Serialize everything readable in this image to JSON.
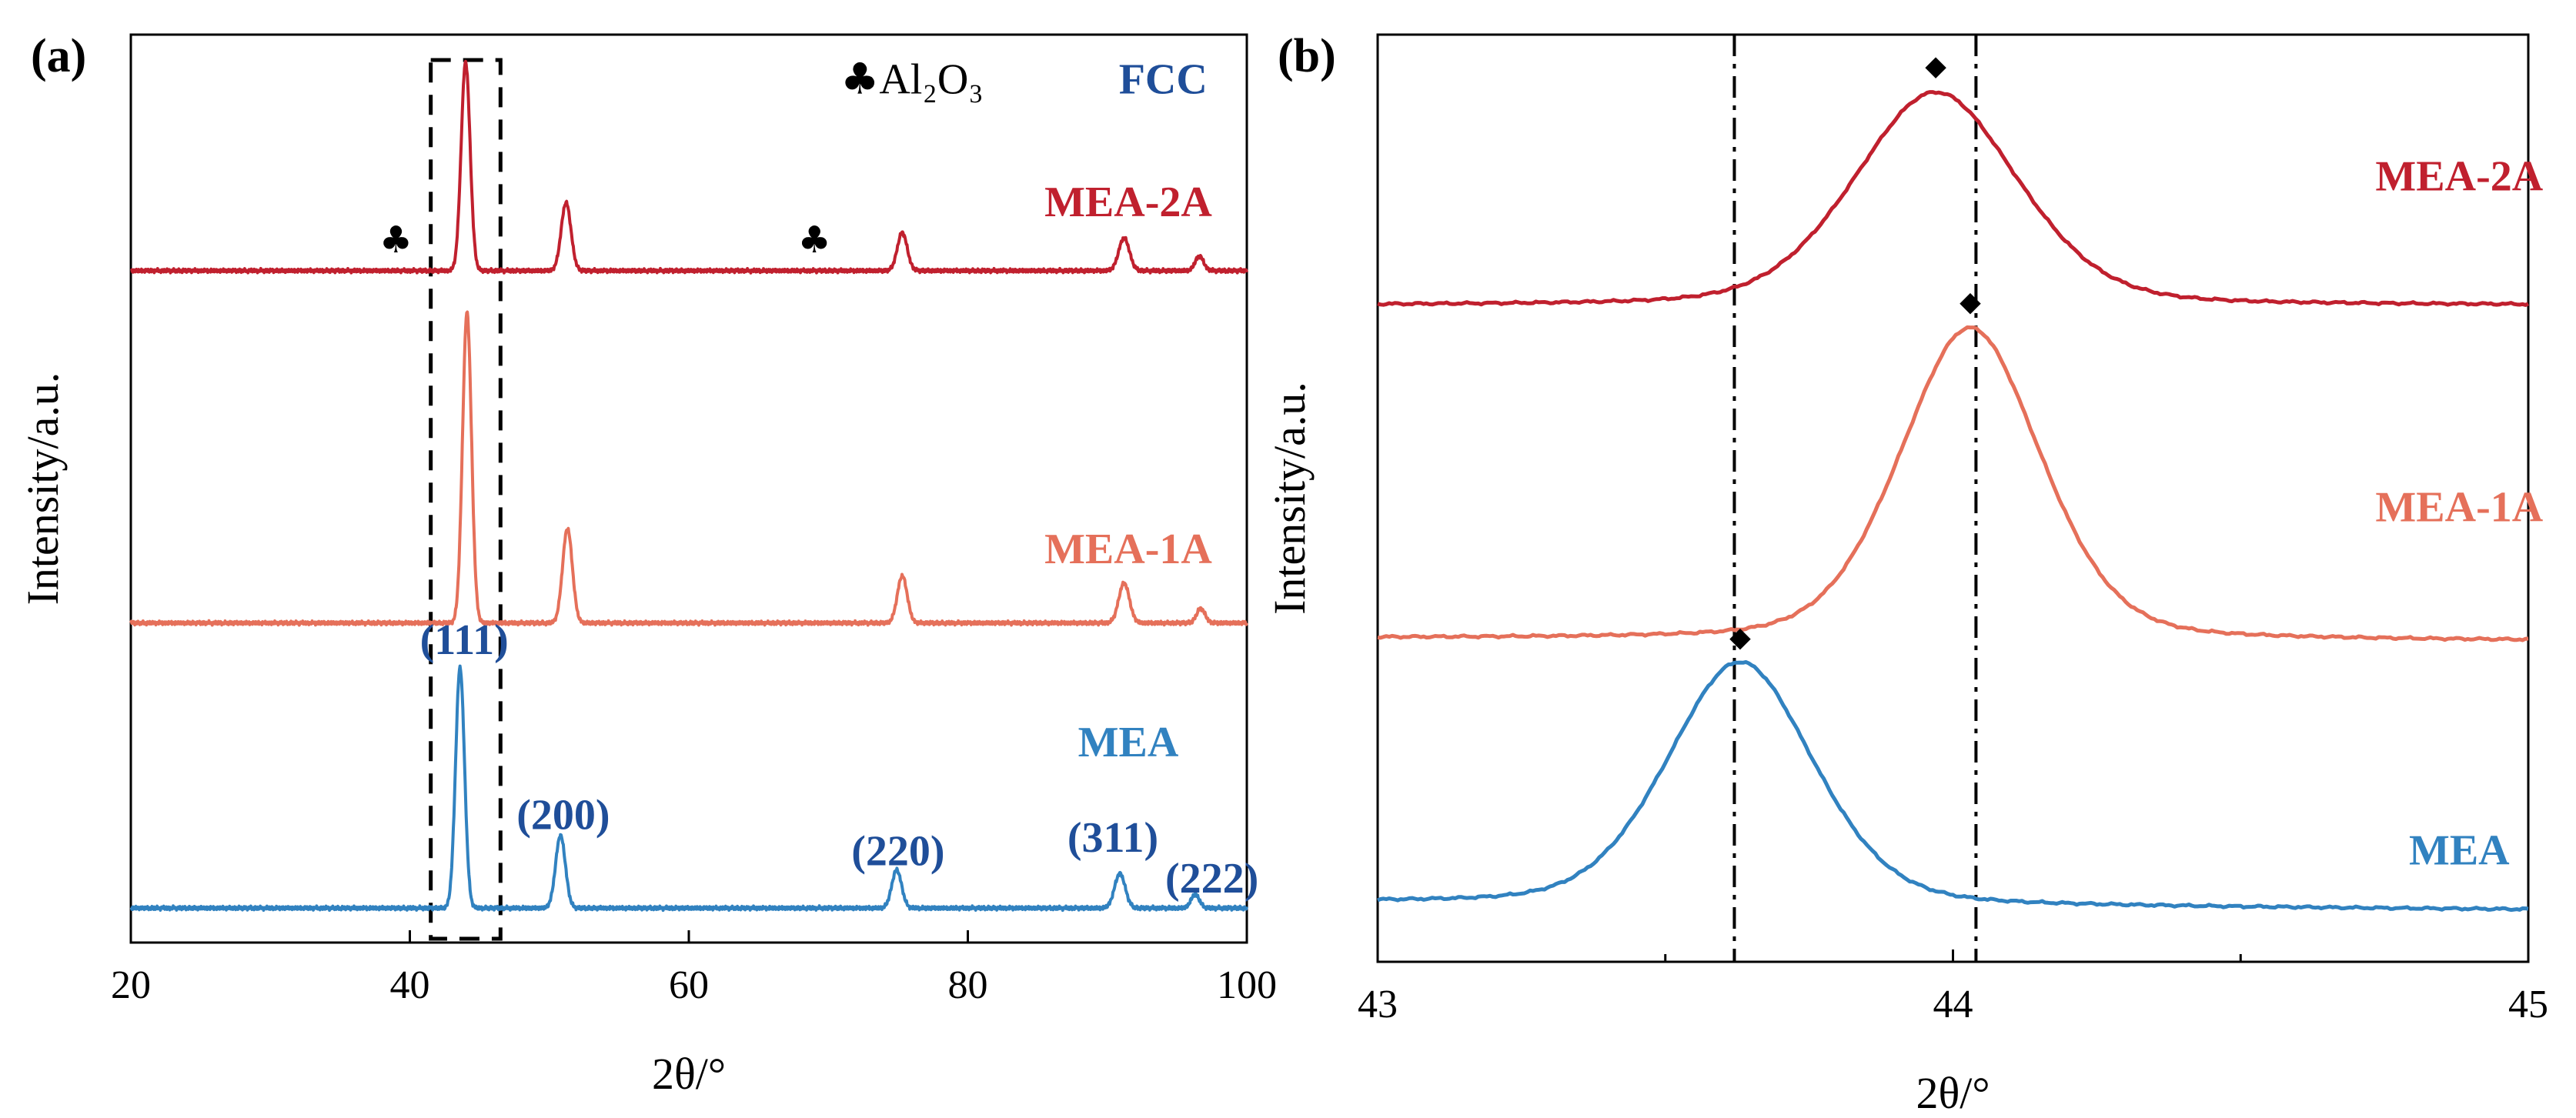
{
  "chart_data": [
    {
      "type": "line",
      "panel_label": "(a)",
      "xlabel": "2θ/°",
      "ylabel": "Intensity/a.u.",
      "xlim": [
        20,
        100
      ],
      "xticks": [
        20,
        40,
        60,
        80,
        100
      ],
      "xtick_labels": [
        "20",
        "40",
        "60",
        "80",
        "100"
      ],
      "y_units": "normalized stacked intensity (0 bottom, 1 top)",
      "ylim": [
        0,
        1
      ],
      "highlight_box_x_range": [
        41.5,
        46.5
      ],
      "legend": {
        "phase_labels": [
          {
            "symbol": "♣",
            "formula": "Al₂O₃",
            "color": "#000000"
          },
          {
            "text": "FCC",
            "color": "#1f4e99"
          }
        ]
      },
      "series": [
        {
          "name": "MEA-2A",
          "color": "#c0202e",
          "baseline": 0.74,
          "peaks": [
            {
              "x": 44.0,
              "height": 0.23,
              "width": 0.32
            },
            {
              "x": 51.2,
              "height": 0.075,
              "width": 0.35
            },
            {
              "x": 75.3,
              "height": 0.042,
              "width": 0.35
            },
            {
              "x": 91.2,
              "height": 0.036,
              "width": 0.38
            },
            {
              "x": 96.6,
              "height": 0.016,
              "width": 0.3
            }
          ]
        },
        {
          "name": "MEA-1A",
          "color": "#e5705a",
          "baseline": 0.352,
          "peaks": [
            {
              "x": 44.1,
              "height": 0.342,
              "width": 0.32
            },
            {
              "x": 51.3,
              "height": 0.104,
              "width": 0.35
            },
            {
              "x": 75.3,
              "height": 0.052,
              "width": 0.35
            },
            {
              "x": 91.2,
              "height": 0.044,
              "width": 0.38
            },
            {
              "x": 96.7,
              "height": 0.016,
              "width": 0.3
            }
          ]
        },
        {
          "name": "MEA",
          "color": "#3182c0",
          "baseline": 0.038,
          "peaks": [
            {
              "x": 43.6,
              "height": 0.265,
              "width": 0.32
            },
            {
              "x": 50.8,
              "height": 0.08,
              "width": 0.35
            },
            {
              "x": 74.9,
              "height": 0.042,
              "width": 0.35
            },
            {
              "x": 90.9,
              "height": 0.038,
              "width": 0.38
            },
            {
              "x": 96.3,
              "height": 0.015,
              "width": 0.3
            }
          ]
        }
      ],
      "series_labels": [
        {
          "text": "MEA-2A",
          "color": "#c0202e",
          "x": 91.5,
          "y": 0.8
        },
        {
          "text": "MEA-1A",
          "color": "#e5705a",
          "x": 91.5,
          "y": 0.418
        },
        {
          "text": "MEA",
          "color": "#3182c0",
          "x": 91.5,
          "y": 0.205
        }
      ],
      "alumina_markers": [
        {
          "symbol": "♣",
          "x": 39.0,
          "y": 0.76
        },
        {
          "symbol": "♣",
          "x": 69.0,
          "y": 0.76
        }
      ],
      "peak_labels": [
        {
          "text": "(111)",
          "color": "#1f4e99",
          "x": 43.9,
          "y": 0.318
        },
        {
          "text": "(200)",
          "color": "#1f4e99",
          "x": 51.0,
          "y": 0.125
        },
        {
          "text": "(220)",
          "color": "#1f4e99",
          "x": 75.0,
          "y": 0.085
        },
        {
          "text": "(311)",
          "color": "#1f4e99",
          "x": 90.4,
          "y": 0.1
        },
        {
          "text": "(222)",
          "color": "#1f4e99",
          "x": 97.5,
          "y": 0.055
        }
      ]
    },
    {
      "type": "line",
      "panel_label": "(b)",
      "xlabel": "2θ/°",
      "ylabel": "Intensity/a.u.",
      "xlim": [
        43,
        45
      ],
      "xticks": [
        43,
        44,
        45
      ],
      "xtick_labels": [
        "43",
        "44",
        "45"
      ],
      "minor_xticks": [
        43.5,
        44.5
      ],
      "y_units": "normalized stacked intensity (0 bottom, 1 top)",
      "ylim": [
        0,
        1
      ],
      "reference_lines_x": [
        43.62,
        44.04
      ],
      "peak_marker_symbol": "◆",
      "series": [
        {
          "name": "MEA-2A",
          "color": "#c0202e",
          "peak_x": 43.97,
          "peak_y": 0.938,
          "width": 0.145,
          "start_y": 0.708,
          "end_y": 0.708
        },
        {
          "name": "MEA-1A",
          "color": "#e5705a",
          "peak_x": 44.03,
          "peak_y": 0.684,
          "width": 0.125,
          "start_y": 0.349,
          "end_y": 0.346
        },
        {
          "name": "MEA",
          "color": "#3182c0",
          "peak_x": 43.63,
          "peak_y": 0.322,
          "width": 0.13,
          "start_y": 0.064,
          "end_y": 0.056
        }
      ],
      "series_labels": [
        {
          "text": "MEA-2A",
          "color": "#c0202e",
          "x": 44.88,
          "y": 0.832
        },
        {
          "text": "MEA-1A",
          "color": "#e5705a",
          "x": 44.88,
          "y": 0.475
        },
        {
          "text": "MEA",
          "color": "#3182c0",
          "x": 44.88,
          "y": 0.105
        }
      ]
    }
  ]
}
